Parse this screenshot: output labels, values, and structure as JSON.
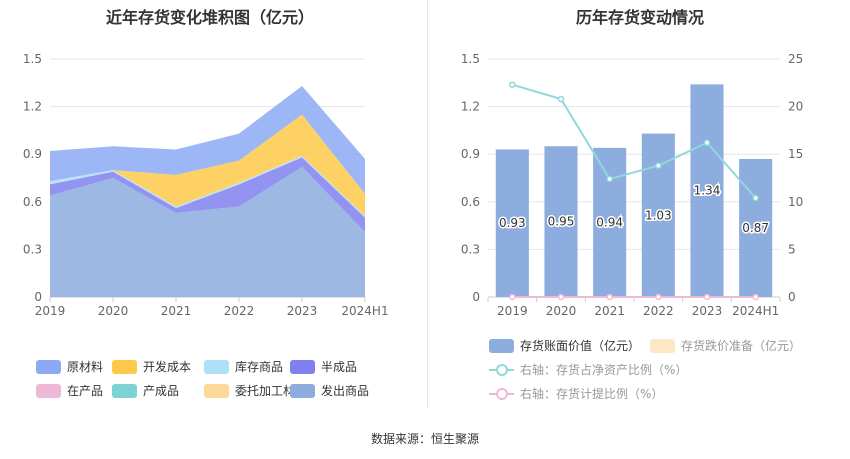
{
  "left_chart": {
    "title": "近年存货变化堆积图（亿元）"
  },
  "right_chart": {
    "title": "历年存货变动情况"
  },
  "footer": {
    "source": "数据来源：恒生聚源"
  },
  "chart_data": [
    {
      "type": "area",
      "stacked": true,
      "title": "近年存货变化堆积图（亿元）",
      "categories": [
        "2019",
        "2020",
        "2021",
        "2022",
        "2023",
        "2024H1"
      ],
      "ylim": [
        0,
        1.5
      ],
      "yticks": [
        "0",
        "0.3",
        "0.6",
        "0.9",
        "1.2",
        "1.5"
      ],
      "series": [
        {
          "name": "发出商品",
          "color": "#8cadde",
          "values": [
            0.64,
            0.75,
            0.53,
            0.57,
            0.82,
            0.41
          ]
        },
        {
          "name": "委托加工材料",
          "color": "#fcd899",
          "values": [
            0,
            0,
            0,
            0,
            0,
            0
          ]
        },
        {
          "name": "产成品",
          "color": "#7dd3d3",
          "values": [
            0,
            0,
            0,
            0,
            0,
            0
          ]
        },
        {
          "name": "在产品",
          "color": "#eeb9d8",
          "values": [
            0,
            0,
            0,
            0,
            0,
            0
          ]
        },
        {
          "name": "半成品",
          "color": "#8080ee",
          "values": [
            0.07,
            0.04,
            0.03,
            0.14,
            0.06,
            0.09
          ]
        },
        {
          "name": "库存商品",
          "color": "#aee1f8",
          "values": [
            0.02,
            0.01,
            0.01,
            0.01,
            0.01,
            0.01
          ]
        },
        {
          "name": "开发成本",
          "color": "#fec94a",
          "values": [
            0,
            0,
            0.2,
            0.14,
            0.26,
            0.14
          ]
        },
        {
          "name": "原材料",
          "color": "#8ca9f3",
          "values": [
            0.19,
            0.15,
            0.16,
            0.17,
            0.18,
            0.22
          ]
        }
      ],
      "legend": [
        {
          "name": "原材料",
          "color": "#8ca9f3"
        },
        {
          "name": "开发成本",
          "color": "#fec94a"
        },
        {
          "name": "库存商品",
          "color": "#aee1f8"
        },
        {
          "name": "半成品",
          "color": "#8080ee"
        },
        {
          "name": "在产品",
          "color": "#eeb9d8"
        },
        {
          "name": "产成品",
          "color": "#7dd3d3"
        },
        {
          "name": "委托加工材料",
          "color": "#fcd899"
        },
        {
          "name": "发出商品",
          "color": "#8cadde"
        }
      ]
    },
    {
      "type": "bar",
      "title": "历年存货变动情况",
      "categories": [
        "2019",
        "2020",
        "2021",
        "2022",
        "2023",
        "2024H1"
      ],
      "ylim": [
        0,
        1.5
      ],
      "yticks": [
        "0",
        "0.3",
        "0.6",
        "0.9",
        "1.2",
        "1.5"
      ],
      "y2lim": [
        0,
        25
      ],
      "y2ticks": [
        "0",
        "5",
        "10",
        "15",
        "20",
        "25"
      ],
      "series": [
        {
          "name": "存货账面价值（亿元）",
          "type": "bar",
          "axis": "left",
          "color": "#8cadde",
          "values": [
            0.93,
            0.95,
            0.94,
            1.03,
            1.34,
            0.87
          ],
          "labels": [
            "0.93",
            "0.95",
            "0.94",
            "1.03",
            "1.34",
            "0.87"
          ]
        },
        {
          "name": "存货跌价准备（亿元）",
          "type": "bar",
          "axis": "left",
          "color": "#fde7c5",
          "values": [
            0,
            0,
            0,
            0,
            0,
            0
          ]
        },
        {
          "name": "右轴：存货占净资产比例（%）",
          "type": "line",
          "axis": "right",
          "color": "#8fd9dc",
          "values": [
            22.3,
            20.8,
            12.4,
            13.8,
            16.2,
            10.4
          ]
        },
        {
          "name": "右轴：存货计提比例（%）",
          "type": "line",
          "axis": "right",
          "color": "#eeb9d8",
          "values": [
            0,
            0,
            0,
            0,
            0,
            0
          ]
        }
      ]
    }
  ]
}
